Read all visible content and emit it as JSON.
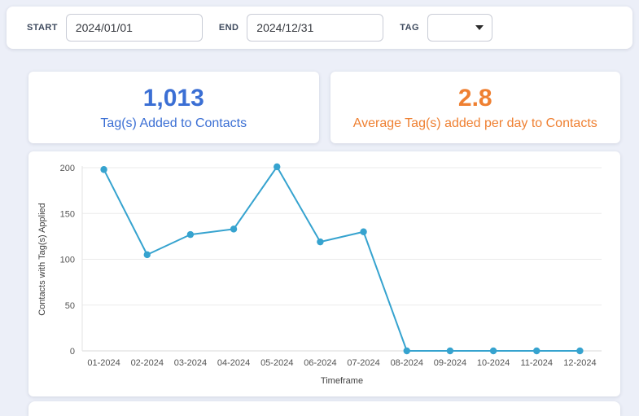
{
  "filters": {
    "start_label": "START",
    "start_value": "2024/01/01",
    "end_label": "END",
    "end_value": "2024/12/31",
    "tag_label": "TAG",
    "tag_value": ""
  },
  "stats": {
    "total": {
      "value": "1,013",
      "label": "Tag(s) Added to Contacts",
      "color": "#3b6fd4"
    },
    "average": {
      "value": "2.8",
      "label": "Average Tag(s) added per day to Contacts",
      "color": "#ef8032"
    }
  },
  "chart_data": {
    "type": "line",
    "categories": [
      "01-2024",
      "02-2024",
      "03-2024",
      "04-2024",
      "05-2024",
      "06-2024",
      "07-2024",
      "08-2024",
      "09-2024",
      "10-2024",
      "11-2024",
      "12-2024"
    ],
    "values": [
      198,
      105,
      127,
      133,
      201,
      119,
      130,
      0,
      0,
      0,
      0,
      0
    ],
    "title": "",
    "xlabel": "Timeframe",
    "ylabel": "Contacts with Tag(s) Applied",
    "ylim": [
      0,
      200
    ],
    "yticks": [
      0,
      50,
      100,
      150,
      200
    ],
    "line_color": "#36a3cf",
    "grid": true,
    "legend": "none"
  }
}
